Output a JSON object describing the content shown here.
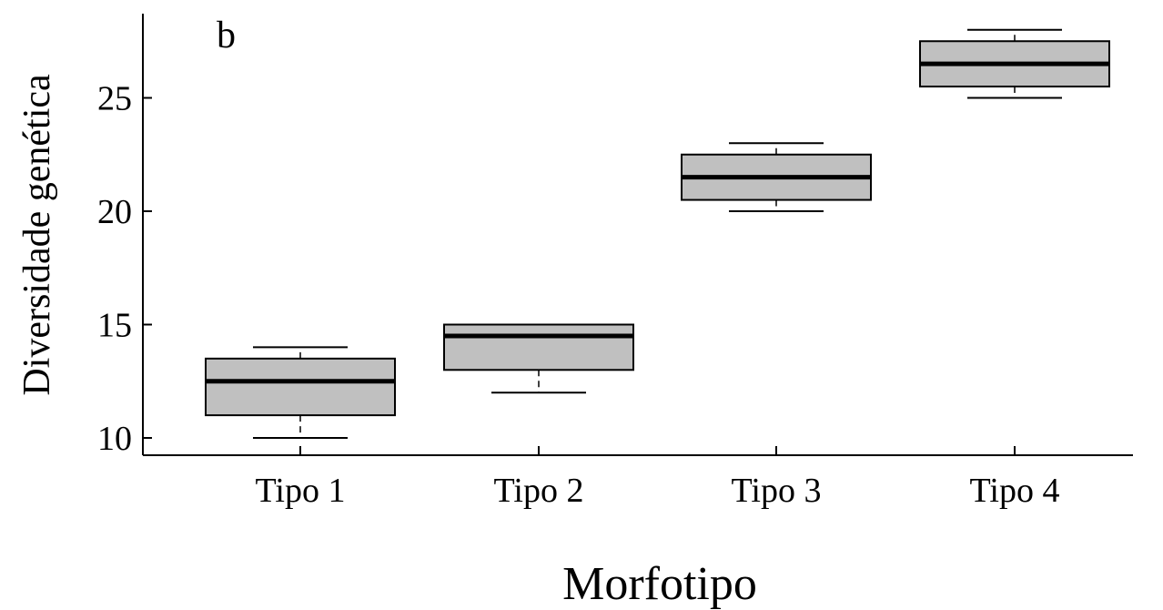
{
  "chart_data": {
    "type": "box",
    "panel_label": "b",
    "xlabel": "Morfotipo",
    "ylabel": "Diversidade genética",
    "ylim": [
      9.2,
      28.8
    ],
    "yticks": [
      10,
      15,
      20,
      25
    ],
    "categories": [
      "Tipo 1",
      "Tipo 2",
      "Tipo 3",
      "Tipo 4"
    ],
    "boxes": [
      {
        "category": "Tipo 1",
        "min": 10,
        "q1": 11,
        "median": 12.5,
        "q3": 13.5,
        "max": 14
      },
      {
        "category": "Tipo 2",
        "min": 12,
        "q1": 13,
        "median": 14.5,
        "q3": 15,
        "max": 15
      },
      {
        "category": "Tipo 3",
        "min": 20,
        "q1": 20.5,
        "median": 21.5,
        "q3": 22.5,
        "max": 23
      },
      {
        "category": "Tipo 4",
        "min": 25,
        "q1": 25.5,
        "median": 26.5,
        "q3": 27.5,
        "max": 28
      }
    ],
    "box_fill": "#c0c0c0",
    "grid": false
  }
}
